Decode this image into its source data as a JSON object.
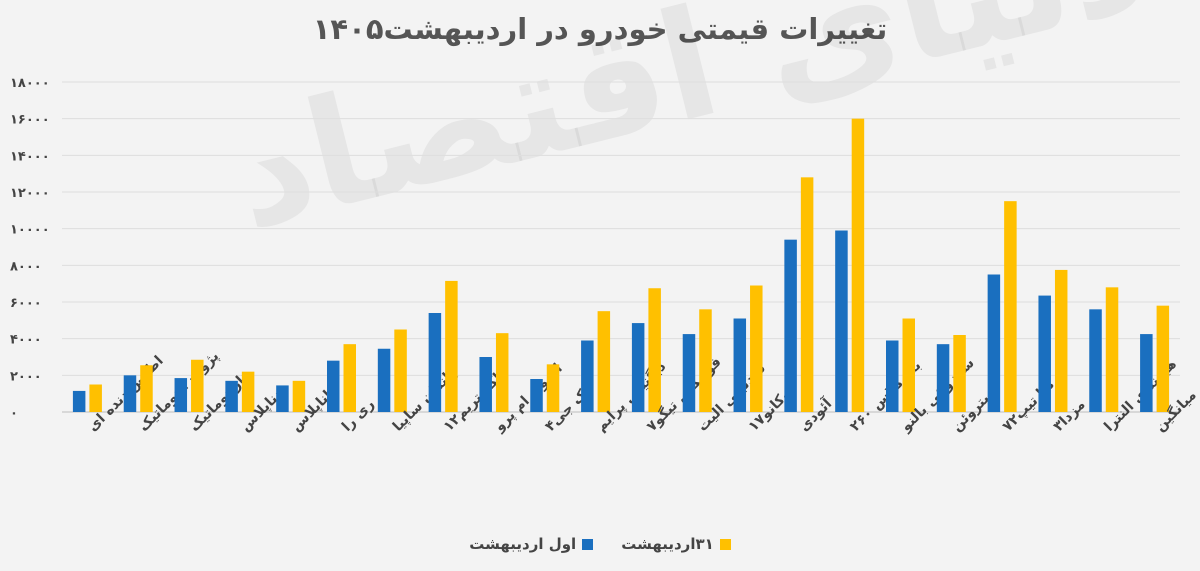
{
  "watermark": "دنیای اقتصاد",
  "chart_data": {
    "type": "bar",
    "title": "تغییرات قیمتی خودرو در اردیبهشت۱۴۰۵",
    "categories": [
      "اطلس دنده ای",
      "پژو۲۰۷اتوماتیک",
      "تاراتوماتیک",
      "دناپلاس",
      "راناپلاس",
      "ری را",
      "چانگان ساپیا",
      "اکستریم۱۲",
      "ام وی ام پرو",
      "جک جی۴",
      "دیگنیتی پرایم",
      "فونیکس تیگو۷",
      "فیدلیتی الیت",
      "لوکانو۱۷",
      "آئودی",
      "بنز کلاس ۲۶۰",
      "سوزوکی بالنو",
      "سیتروئن",
      "کیا تیپ۷۲",
      "مزدا۳",
      "هیوندای النترا",
      "میانگین"
    ],
    "series": [
      {
        "name": "اول اردیبهشت",
        "color": "#1a6fbf",
        "values": [
          1150,
          2000,
          1850,
          1700,
          1450,
          2800,
          3450,
          5400,
          3000,
          1800,
          3900,
          4850,
          4250,
          5100,
          9400,
          9900,
          3900,
          3700,
          7500,
          6350,
          5600,
          4250
        ]
      },
      {
        "name": "۳۱اردیبهشت",
        "color": "#ffc000",
        "values": [
          1500,
          2550,
          2850,
          2200,
          1700,
          3700,
          4500,
          7150,
          4300,
          2600,
          5500,
          6750,
          5600,
          6900,
          12800,
          16000,
          5100,
          4200,
          11500,
          7750,
          6800,
          5800
        ]
      }
    ],
    "ylim": [
      0,
      18000
    ],
    "yticks": [
      "۰",
      "۲۰۰۰",
      "۴۰۰۰",
      "۶۰۰۰",
      "۸۰۰۰",
      "۱۰۰۰۰",
      "۱۲۰۰۰",
      "۱۴۰۰۰",
      "۱۶۰۰۰",
      "۱۸۰۰۰"
    ],
    "ytick_values": [
      0,
      2000,
      4000,
      6000,
      8000,
      10000,
      12000,
      14000,
      16000,
      18000
    ],
    "grid": true,
    "legend_position": "bottom"
  }
}
